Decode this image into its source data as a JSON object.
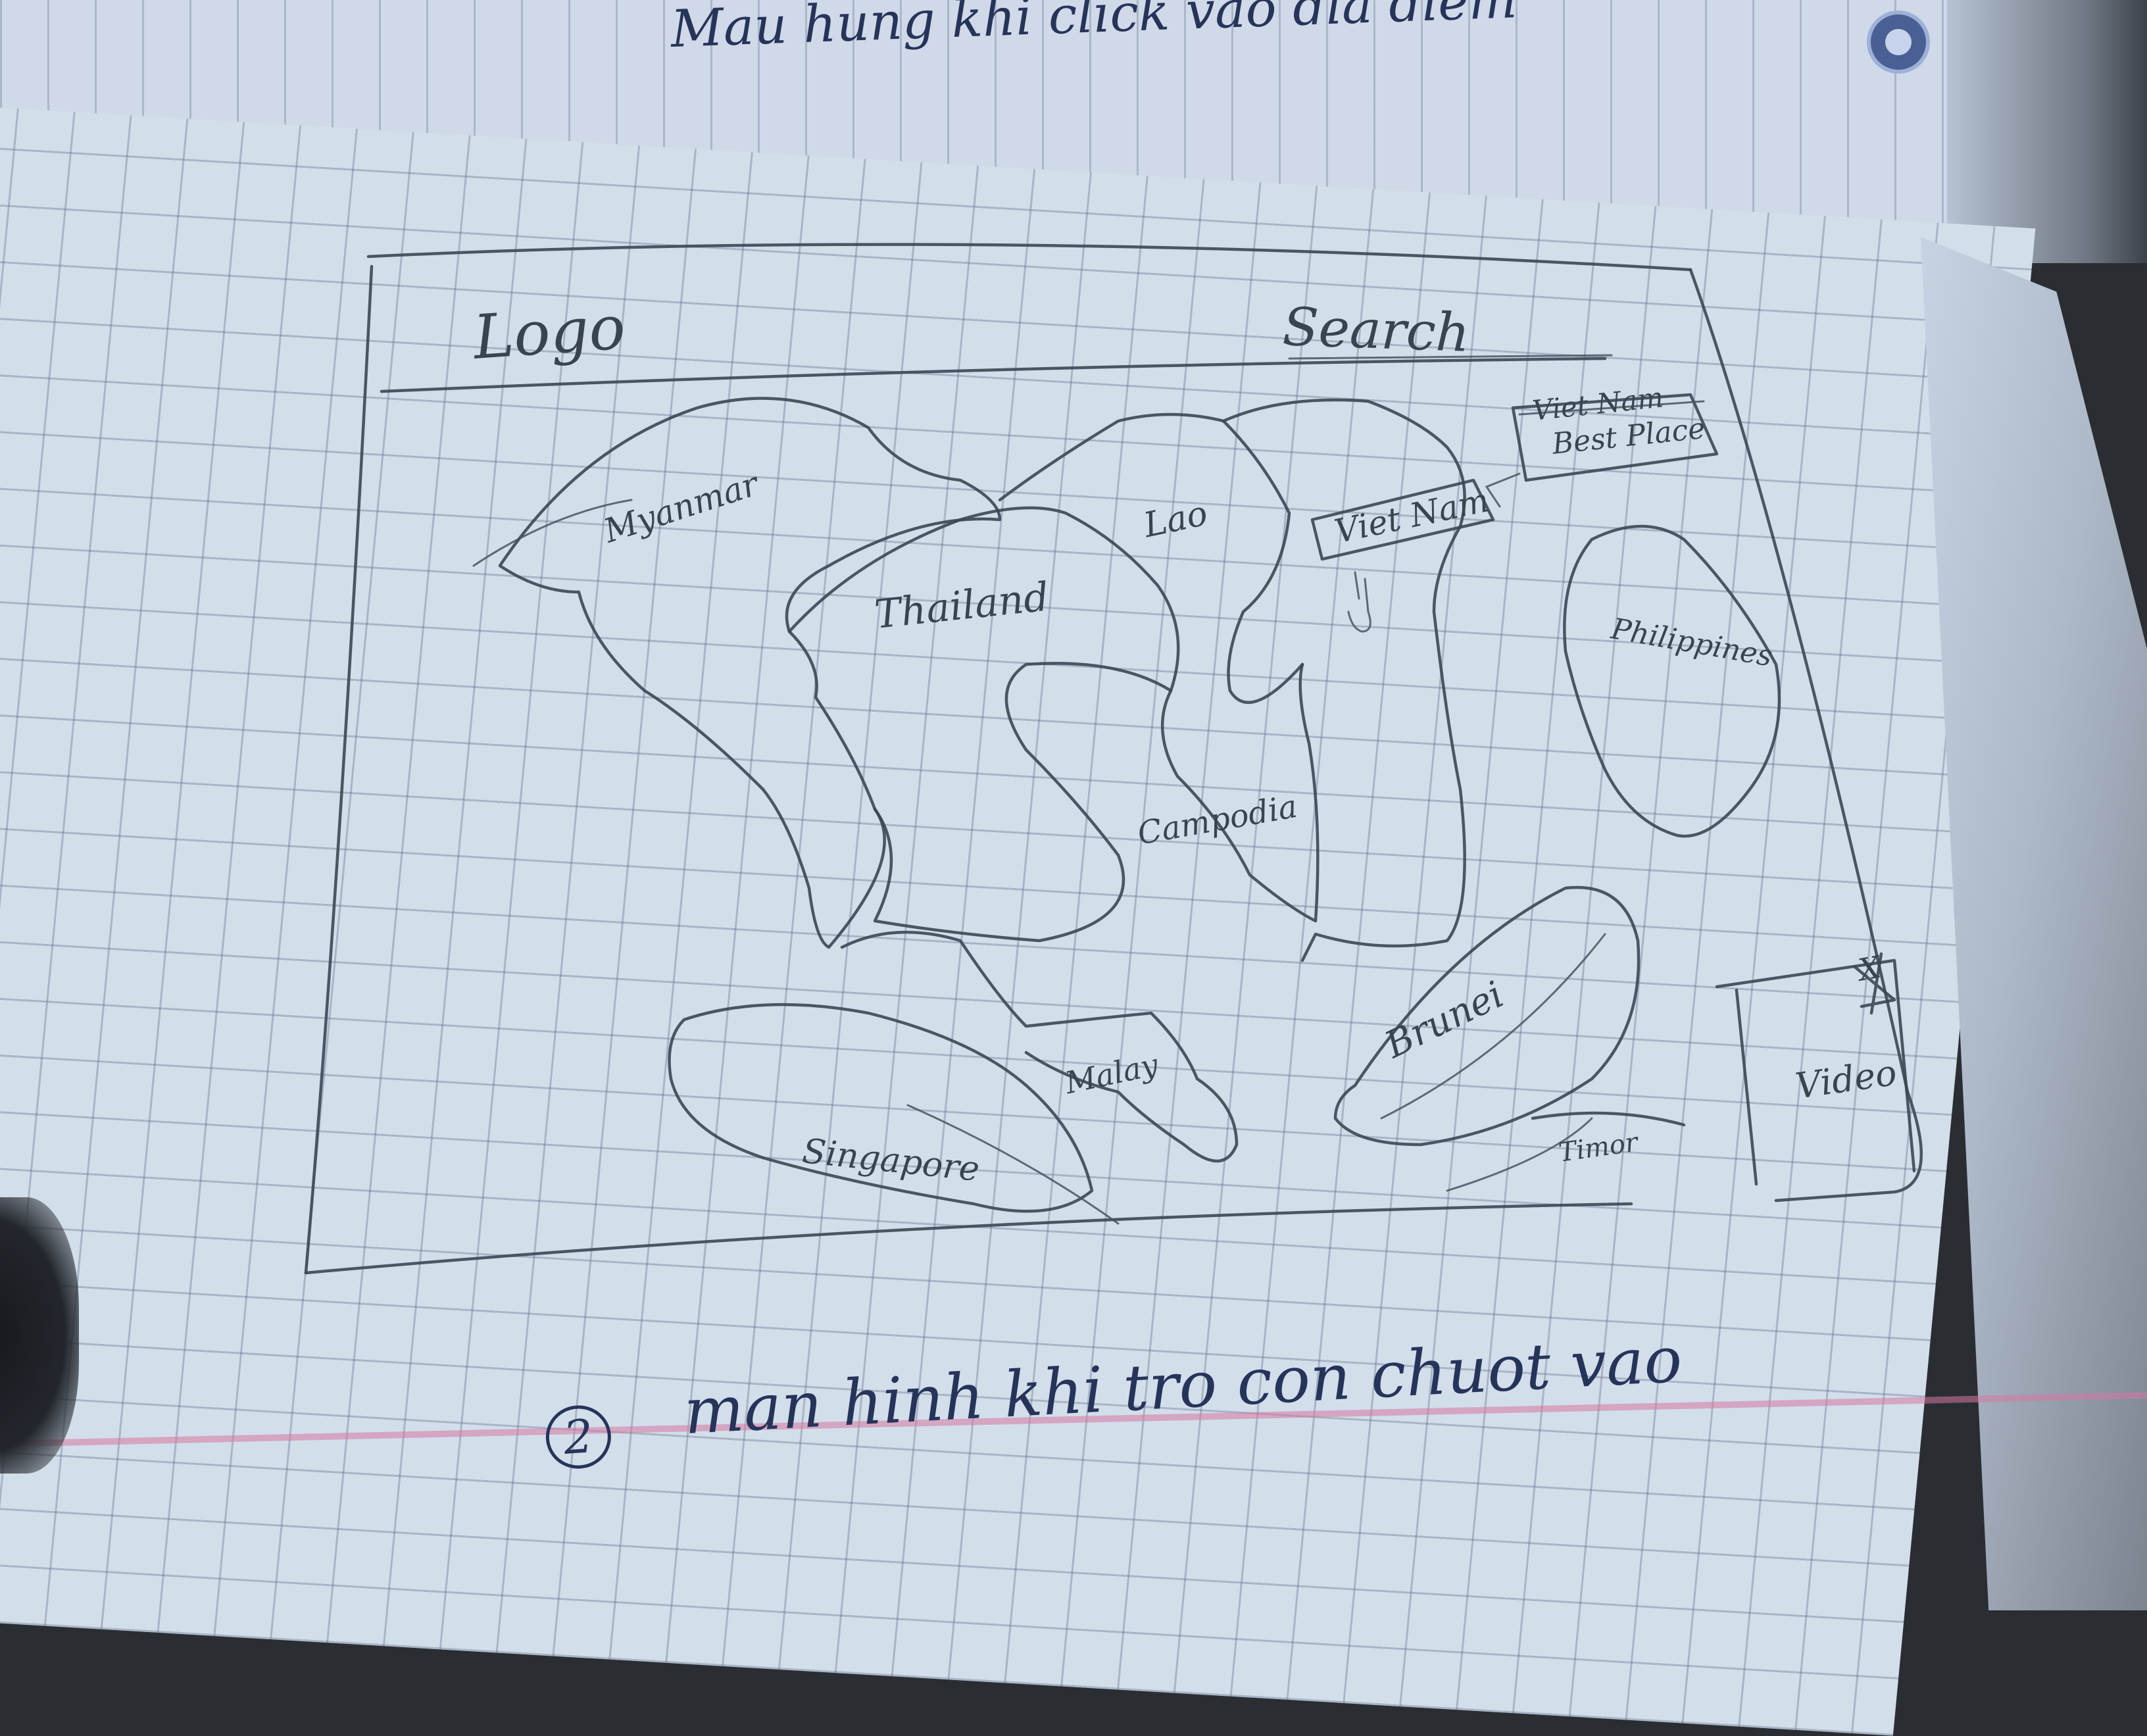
{
  "top_note": {
    "text": "Mau hung khi click vao dia diem"
  },
  "wireframe": {
    "logo_label": "Logo",
    "search_label": "Search",
    "popup": {
      "line1": "Viet Nam",
      "line2": "Best Place"
    },
    "hover_tag": "Viet Nam",
    "countries": {
      "myanmar": "Myanmar",
      "thailand": "Thailand",
      "lao": "Lao",
      "vietnam": "Viet Nam",
      "cambodia": "Campodia",
      "philippines": "Philippines",
      "brunei": "Brunei",
      "malay": "Malay",
      "singapore": "Singapore",
      "timor": "Timor"
    },
    "video_label": "Video",
    "close_mark": "X"
  },
  "bottom_note": {
    "number": "2",
    "text": "man hinh khi tro con chuot vao"
  },
  "colors": {
    "paper": "#d3deeb",
    "grid": "#5a6680",
    "pencil": "#3d4654",
    "ink": "#26345a",
    "margin": "#d678a0"
  }
}
